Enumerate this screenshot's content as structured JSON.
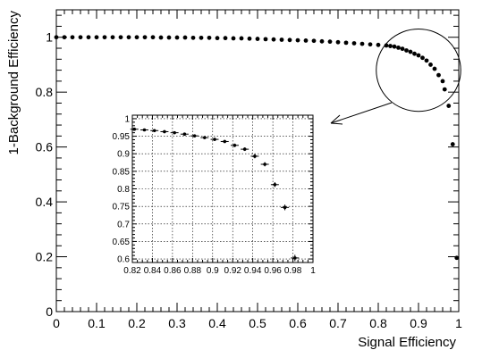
{
  "chart_data": [
    {
      "type": "scatter",
      "role": "main",
      "xlabel": "Signal Efficiency",
      "ylabel": "1-Background Efficiency",
      "xlim": [
        0,
        1
      ],
      "ylim": [
        0,
        1.1
      ],
      "x_ticks": [
        0,
        0.1,
        0.2,
        0.3,
        0.4,
        0.5,
        0.6,
        0.7,
        0.8,
        0.9,
        1
      ],
      "x_tick_labels": [
        "0",
        "0.1",
        "0.2",
        "0.3",
        "0.4",
        "0.5",
        "0.6",
        "0.7",
        "0.8",
        "0.9",
        "1"
      ],
      "y_ticks": [
        0,
        0.2,
        0.4,
        0.6,
        0.8,
        1
      ],
      "y_tick_labels": [
        "0",
        "0.2",
        "0.4",
        "0.6",
        "0.8",
        "1"
      ],
      "grid": false,
      "x": [
        0.0,
        0.02,
        0.04,
        0.06,
        0.08,
        0.1,
        0.12,
        0.14,
        0.16,
        0.18,
        0.2,
        0.22,
        0.24,
        0.26,
        0.28,
        0.3,
        0.32,
        0.34,
        0.36,
        0.38,
        0.4,
        0.42,
        0.44,
        0.46,
        0.48,
        0.5,
        0.52,
        0.54,
        0.56,
        0.58,
        0.6,
        0.62,
        0.64,
        0.66,
        0.68,
        0.7,
        0.72,
        0.74,
        0.76,
        0.78,
        0.8,
        0.82,
        0.83,
        0.84,
        0.85,
        0.86,
        0.87,
        0.88,
        0.89,
        0.9,
        0.91,
        0.92,
        0.93,
        0.94,
        0.95,
        0.96,
        0.965,
        0.975,
        0.985,
        0.995
      ],
      "y": [
        1.0,
        1.0,
        1.0,
        1.0,
        1.0,
        1.0,
        1.0,
        1.0,
        1.0,
        1.0,
        1.0,
        1.0,
        1.0,
        0.999,
        0.999,
        0.999,
        0.999,
        0.998,
        0.998,
        0.998,
        0.997,
        0.997,
        0.996,
        0.996,
        0.995,
        0.994,
        0.993,
        0.992,
        0.991,
        0.99,
        0.989,
        0.988,
        0.987,
        0.985,
        0.984,
        0.982,
        0.98,
        0.978,
        0.976,
        0.974,
        0.972,
        0.97,
        0.968,
        0.966,
        0.962,
        0.958,
        0.952,
        0.947,
        0.94,
        0.934,
        0.925,
        0.915,
        0.9,
        0.885,
        0.862,
        0.84,
        0.81,
        0.75,
        0.61,
        0.196
      ],
      "zoom_ellipse_center": [
        0.9,
        0.88
      ],
      "zoom_ellipse_radii": [
        0.105,
        0.15
      ]
    },
    {
      "type": "scatter",
      "role": "inset",
      "xlim": [
        0.82,
        1
      ],
      "ylim": [
        0.59,
        1.01
      ],
      "x_ticks": [
        0.82,
        0.84,
        0.86,
        0.88,
        0.9,
        0.92,
        0.94,
        0.96,
        0.98,
        1
      ],
      "x_tick_labels": [
        "0.82",
        "0.84",
        "0.86",
        "0.88",
        "0.9",
        "0.92",
        "0.94",
        "0.96",
        "0.98",
        "1"
      ],
      "y_ticks": [
        0.6,
        0.65,
        0.7,
        0.75,
        0.8,
        0.85,
        0.9,
        0.95,
        1
      ],
      "y_tick_labels": [
        "0.6",
        "0.65",
        "0.7",
        "0.75",
        "0.8",
        "0.85",
        "0.9",
        "0.95",
        "1"
      ],
      "grid": true,
      "x": [
        0.822,
        0.832,
        0.842,
        0.852,
        0.862,
        0.872,
        0.882,
        0.892,
        0.902,
        0.912,
        0.922,
        0.932,
        0.942,
        0.952,
        0.962,
        0.972,
        0.982
      ],
      "y": [
        0.97,
        0.968,
        0.966,
        0.963,
        0.96,
        0.956,
        0.951,
        0.946,
        0.941,
        0.935,
        0.924,
        0.913,
        0.893,
        0.87,
        0.812,
        0.747,
        0.603
      ],
      "x_err": [
        0.004,
        0.004,
        0.004,
        0.004,
        0.004,
        0.004,
        0.004,
        0.004,
        0.004,
        0.004,
        0.004,
        0.004,
        0.004,
        0.004,
        0.004,
        0.004,
        0.004
      ],
      "y_err": [
        0.003,
        0.003,
        0.003,
        0.003,
        0.003,
        0.003,
        0.003,
        0.004,
        0.004,
        0.004,
        0.005,
        0.005,
        0.006,
        0.006,
        0.007,
        0.008,
        0.009
      ]
    }
  ]
}
